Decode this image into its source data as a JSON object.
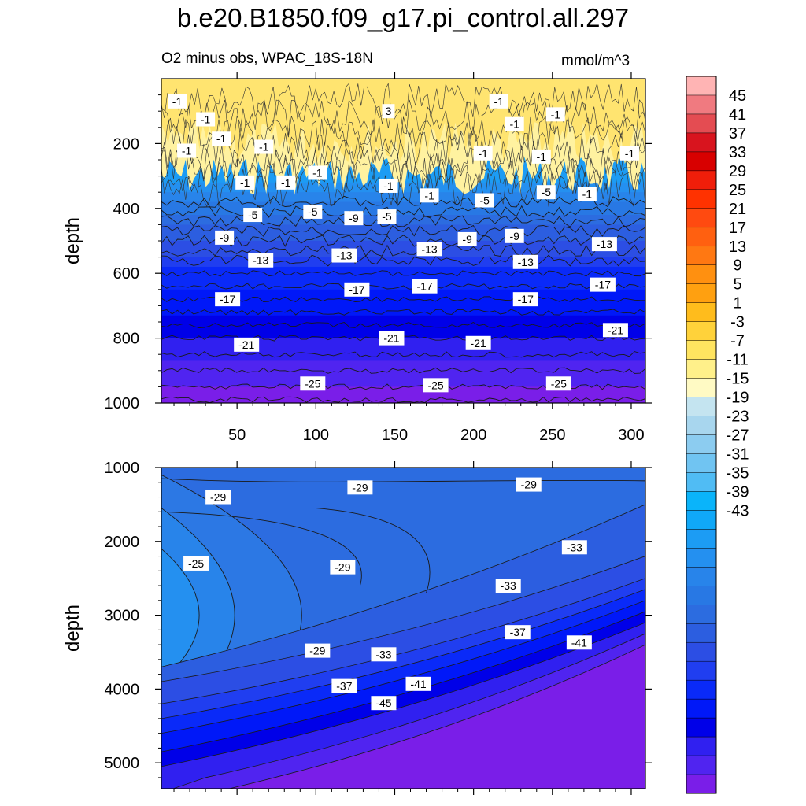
{
  "title": "b.e20.B1850.f09_g17.pi_control.all.297",
  "subtitle": "O2 minus obs, WPAC_18S-18N",
  "units": "mmol/m^3",
  "chart_data": [
    {
      "type": "heatmap",
      "panel": "upper",
      "x_ticks": [
        "50",
        "100",
        "150",
        "200",
        "250",
        "300"
      ],
      "x_tick_values": [
        50,
        100,
        150,
        200,
        250,
        300
      ],
      "xlim": [
        2,
        309
      ],
      "ylabel": "depth",
      "y_ticks": [
        "200",
        "400",
        "600",
        "800",
        "1000"
      ],
      "y_tick_values": [
        200,
        400,
        600,
        800,
        1000
      ],
      "ylim": [
        1000,
        0
      ],
      "profile": [
        {
          "depth": 0,
          "value": 1
        },
        {
          "depth": 100,
          "value": 2
        },
        {
          "depth": 200,
          "value": 2
        },
        {
          "depth": 300,
          "value": 0
        },
        {
          "depth": 350,
          "value": -3
        },
        {
          "depth": 400,
          "value": -6
        },
        {
          "depth": 450,
          "value": -9
        },
        {
          "depth": 500,
          "value": -11
        },
        {
          "depth": 550,
          "value": -13
        },
        {
          "depth": 600,
          "value": -16
        },
        {
          "depth": 650,
          "value": -17
        },
        {
          "depth": 700,
          "value": -18
        },
        {
          "depth": 800,
          "value": -21
        },
        {
          "depth": 900,
          "value": -24
        },
        {
          "depth": 1000,
          "value": -26
        }
      ],
      "contour_labels": [
        {
          "x": 12,
          "y": 70,
          "text": "-1"
        },
        {
          "x": 30,
          "y": 125,
          "text": "-1"
        },
        {
          "x": 40,
          "y": 185,
          "text": "-1"
        },
        {
          "x": 18,
          "y": 222,
          "text": "-1"
        },
        {
          "x": 55,
          "y": 320,
          "text": "-1"
        },
        {
          "x": 67,
          "y": 210,
          "text": "-1"
        },
        {
          "x": 81,
          "y": 320,
          "text": "-1"
        },
        {
          "x": 101,
          "y": 290,
          "text": "-1"
        },
        {
          "x": 146,
          "y": 330,
          "text": "-1"
        },
        {
          "x": 172,
          "y": 360,
          "text": "-1"
        },
        {
          "x": 206,
          "y": 230,
          "text": "-1"
        },
        {
          "x": 216,
          "y": 70,
          "text": "-1"
        },
        {
          "x": 226,
          "y": 140,
          "text": "-1"
        },
        {
          "x": 252,
          "y": 110,
          "text": "-1"
        },
        {
          "x": 243,
          "y": 240,
          "text": "-1"
        },
        {
          "x": 272,
          "y": 355,
          "text": "-1"
        },
        {
          "x": 299,
          "y": 230,
          "text": "-1"
        },
        {
          "x": 146,
          "y": 100,
          "text": "3"
        },
        {
          "x": 60,
          "y": 420,
          "text": "-5"
        },
        {
          "x": 98,
          "y": 410,
          "text": "-5"
        },
        {
          "x": 145,
          "y": 425,
          "text": "-5"
        },
        {
          "x": 207,
          "y": 375,
          "text": "-5"
        },
        {
          "x": 246,
          "y": 350,
          "text": "-5"
        },
        {
          "x": 42,
          "y": 490,
          "text": "-9"
        },
        {
          "x": 124,
          "y": 430,
          "text": "-9"
        },
        {
          "x": 196,
          "y": 495,
          "text": "-9"
        },
        {
          "x": 226,
          "y": 485,
          "text": "-9"
        },
        {
          "x": 65,
          "y": 560,
          "text": "-13"
        },
        {
          "x": 118,
          "y": 545,
          "text": "-13"
        },
        {
          "x": 172,
          "y": 525,
          "text": "-13"
        },
        {
          "x": 233,
          "y": 565,
          "text": "-13"
        },
        {
          "x": 283,
          "y": 510,
          "text": "-13"
        },
        {
          "x": 44,
          "y": 680,
          "text": "-17"
        },
        {
          "x": 126,
          "y": 650,
          "text": "-17"
        },
        {
          "x": 169,
          "y": 640,
          "text": "-17"
        },
        {
          "x": 233,
          "y": 680,
          "text": "-17"
        },
        {
          "x": 282,
          "y": 635,
          "text": "-17"
        },
        {
          "x": 56,
          "y": 820,
          "text": "-21"
        },
        {
          "x": 148,
          "y": 800,
          "text": "-21"
        },
        {
          "x": 203,
          "y": 815,
          "text": "-21"
        },
        {
          "x": 290,
          "y": 775,
          "text": "-21"
        },
        {
          "x": 98,
          "y": 940,
          "text": "-25"
        },
        {
          "x": 176,
          "y": 945,
          "text": "-25"
        },
        {
          "x": 254,
          "y": 940,
          "text": "-25"
        }
      ]
    },
    {
      "type": "heatmap",
      "panel": "lower",
      "xlim": [
        2,
        309
      ],
      "ylabel": "depth",
      "y_ticks": [
        "1000",
        "2000",
        "3000",
        "4000",
        "5000"
      ],
      "y_tick_values": [
        1000,
        2000,
        3000,
        4000,
        5000
      ],
      "ylim": [
        5350,
        1000
      ],
      "contour_labels": [
        {
          "x": 38,
          "y": 1400,
          "text": "-29"
        },
        {
          "x": 128,
          "y": 1270,
          "text": "-29"
        },
        {
          "x": 235,
          "y": 1230,
          "text": "-29"
        },
        {
          "x": 24,
          "y": 2300,
          "text": "-25"
        },
        {
          "x": 117,
          "y": 2350,
          "text": "-29"
        },
        {
          "x": 264,
          "y": 2080,
          "text": "-33"
        },
        {
          "x": 222,
          "y": 2600,
          "text": "-33"
        },
        {
          "x": 101,
          "y": 3480,
          "text": "-29"
        },
        {
          "x": 143,
          "y": 3530,
          "text": "-33"
        },
        {
          "x": 228,
          "y": 3230,
          "text": "-37"
        },
        {
          "x": 267,
          "y": 3370,
          "text": "-41"
        },
        {
          "x": 118,
          "y": 3960,
          "text": "-37"
        },
        {
          "x": 165,
          "y": 3930,
          "text": "-41"
        },
        {
          "x": 143,
          "y": 4190,
          "text": "-45"
        }
      ]
    }
  ],
  "colorbar": {
    "labels": [
      "45",
      "41",
      "37",
      "33",
      "29",
      "25",
      "21",
      "17",
      "13",
      "9",
      "5",
      "1",
      "-3",
      "-7",
      "-11",
      "-15",
      "-19",
      "-23",
      "-27",
      "-31",
      "-35",
      "-39",
      "-43"
    ],
    "colors": [
      "#ffb4b4",
      "#f07a80",
      "#e44c52",
      "#d8141e",
      "#d80000",
      "#f01e0a",
      "#ff3200",
      "#ff4a10",
      "#ff6010",
      "#ff7812",
      "#ff9010",
      "#ffa010",
      "#ffbc1c",
      "#ffd23a",
      "#ffe460",
      "#fff08a",
      "#fffac4",
      "#c4e4f0",
      "#a8d6ee",
      "#8cccf0",
      "#70c4f2",
      "#50bcf4",
      "#0ab4fa",
      "#10a8f8",
      "#1c9cf4",
      "#2490f0",
      "#2884ea",
      "#2878e4",
      "#2c6ce0",
      "#2c5ee0",
      "#2c4ee4",
      "#203ef0",
      "#0a2af8",
      "#0018f8",
      "#0000e8",
      "#3020f0",
      "#5024f0",
      "#7a1ee8"
    ]
  }
}
